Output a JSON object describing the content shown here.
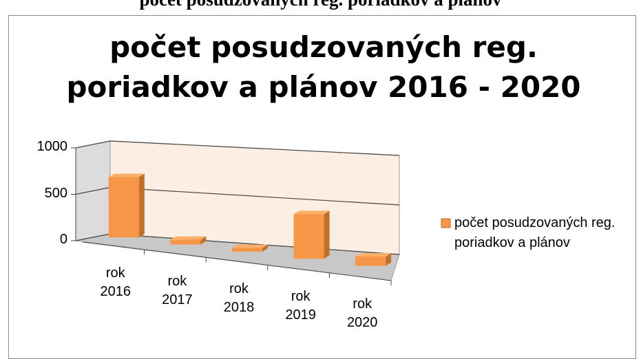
{
  "heading": "počet posudzovaných reg. poriadkov a plánov",
  "chart_data": {
    "type": "bar3d",
    "title": "počet posudzovaných reg. poriadkov a plánov 2016 - 2020",
    "categories": [
      "rok 2016",
      "rok 2017",
      "rok 2018",
      "rok 2019",
      "rok 2020"
    ],
    "series": [
      {
        "name": "počet posudzovaných reg. poriadkov a plánov",
        "color": "#f79646",
        "values": [
          650,
          50,
          40,
          480,
          100
        ]
      }
    ],
    "ylim": [
      0,
      1000
    ],
    "yticks": [
      0,
      500,
      1000
    ],
    "grid": true,
    "legend": "right"
  }
}
